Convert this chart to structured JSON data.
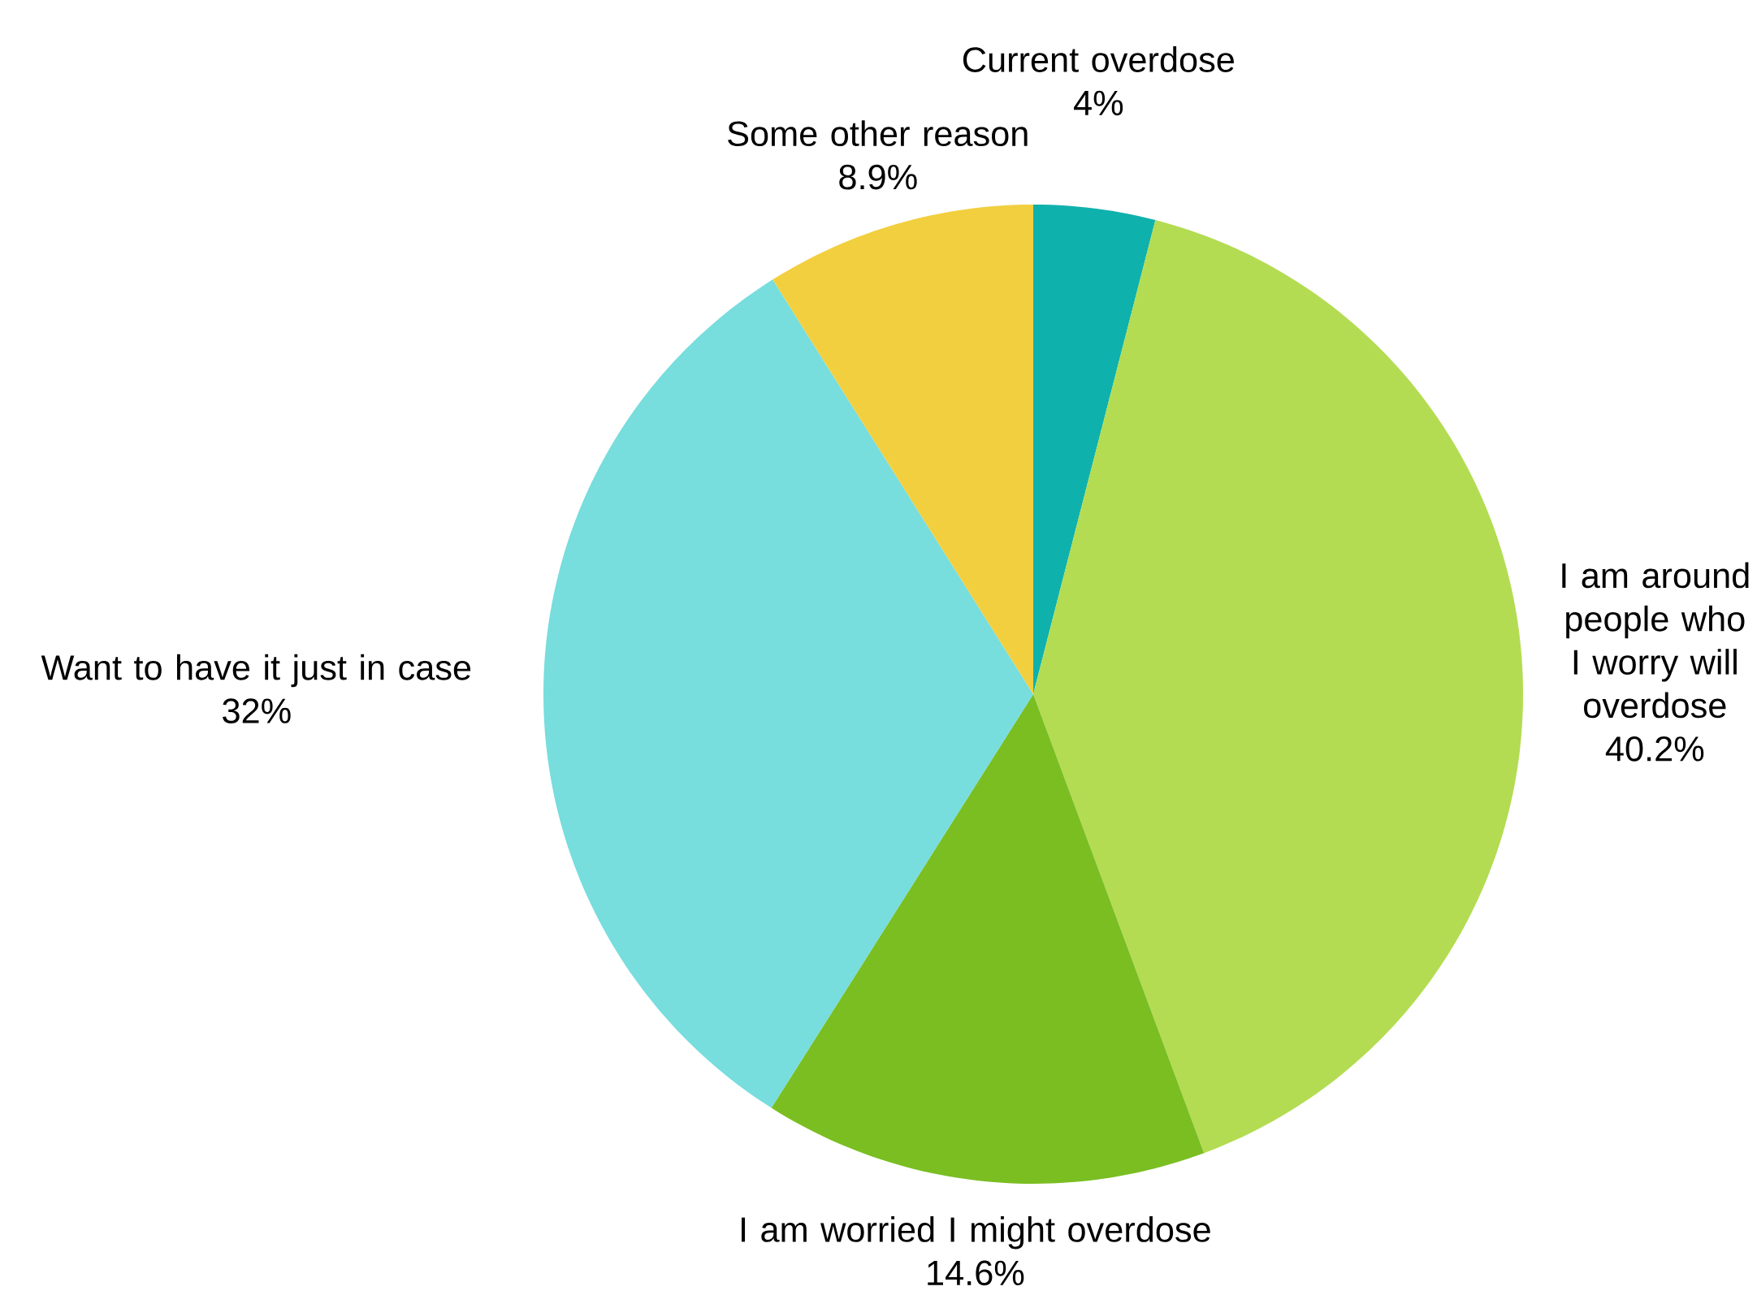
{
  "chart_data": {
    "type": "pie",
    "categories": [
      "Current overdose",
      "I am around people who I worry will overdose",
      "I am worried I might overdose",
      "Want to have it just in case",
      "Some other reason"
    ],
    "values": [
      4,
      40.2,
      14.6,
      32,
      8.9
    ],
    "colors": [
      "#0fb1ad",
      "#b3dc52",
      "#7abe22",
      "#77dddd",
      "#f2cf3f"
    ],
    "value_labels": [
      "4%",
      "40.2%",
      "14.6%",
      "32%",
      "8.9%"
    ]
  }
}
